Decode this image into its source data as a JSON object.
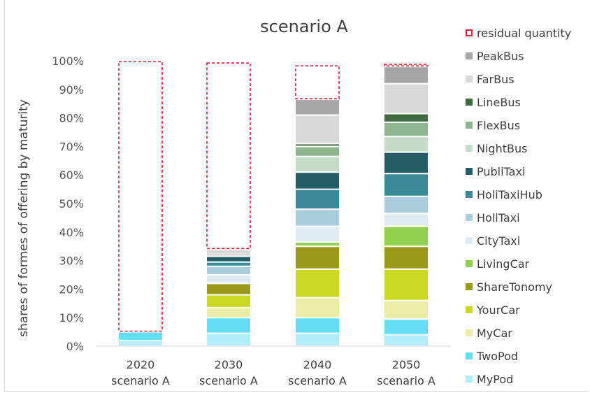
{
  "chart_data": {
    "type": "bar",
    "stacked": true,
    "title": "scenario A",
    "ylabel": "shares of formes of offering by maturity",
    "xlabel": "",
    "ylim": [
      0,
      100
    ],
    "yticks": [
      "0%",
      "10%",
      "20%",
      "30%",
      "40%",
      "50%",
      "60%",
      "70%",
      "80%",
      "90%",
      "100%"
    ],
    "grid": false,
    "legend_position": "right",
    "categories": [
      {
        "year": "2020",
        "scenario": "scenario A"
      },
      {
        "year": "2030",
        "scenario": "scenario A"
      },
      {
        "year": "2040",
        "scenario": "scenario A"
      },
      {
        "year": "2050",
        "scenario": "scenario A"
      }
    ],
    "series": [
      {
        "name": "MyPod",
        "color": "#b3ecfa",
        "values": [
          2,
          4.5,
          4.5,
          4
        ]
      },
      {
        "name": "TwoPod",
        "color": "#66ddf5",
        "values": [
          3,
          5.5,
          5.5,
          5.5
        ]
      },
      {
        "name": "MyCar",
        "color": "#e9eda6",
        "values": [
          0,
          3.5,
          7,
          6.5
        ]
      },
      {
        "name": "YourCar",
        "color": "#ccd923",
        "values": [
          0,
          4.5,
          10,
          11
        ]
      },
      {
        "name": "ShareTonomy",
        "color": "#9a9a1a",
        "values": [
          0,
          4,
          8,
          8
        ]
      },
      {
        "name": "LivingCar",
        "color": "#92d050",
        "values": [
          0,
          0,
          1.5,
          7
        ]
      },
      {
        "name": "CityTaxi",
        "color": "#deebf3",
        "values": [
          0,
          3,
          5.5,
          4.5
        ]
      },
      {
        "name": "HoliTaxi",
        "color": "#a9cedd",
        "values": [
          0,
          3,
          6,
          6
        ]
      },
      {
        "name": "HoliTaxiHub",
        "color": "#3a8a9a",
        "values": [
          0,
          1.5,
          7,
          8
        ]
      },
      {
        "name": "PubliTaxi",
        "color": "#265c66",
        "values": [
          0,
          2,
          6,
          7.5
        ]
      },
      {
        "name": "NightBus",
        "color": "#c5dcc8",
        "values": [
          0,
          0,
          5.5,
          5.5
        ]
      },
      {
        "name": "FlexBus",
        "color": "#8db58f",
        "values": [
          0,
          0,
          3.5,
          5
        ]
      },
      {
        "name": "LineBus",
        "color": "#3f6c3f",
        "values": [
          0,
          0,
          1,
          3
        ]
      },
      {
        "name": "FarBus",
        "color": "#d9d9d9",
        "values": [
          0,
          2.5,
          10,
          10.5
        ]
      },
      {
        "name": "PeakBus",
        "color": "#a6a6a6",
        "values": [
          0,
          0,
          5.5,
          6
        ]
      },
      {
        "name": "residual quantity",
        "color": "#d9223b",
        "style": "dashed-outline",
        "values": [
          95,
          65.5,
          12,
          1
        ]
      }
    ],
    "legend_order": [
      "residual quantity",
      "PeakBus",
      "FarBus",
      "LineBus",
      "FlexBus",
      "NightBus",
      "PubliTaxi",
      "HoliTaxiHub",
      "HoliTaxi",
      "CityTaxi",
      "LivingCar",
      "ShareTonomy",
      "YourCar",
      "MyCar",
      "TwoPod",
      "MyPod"
    ]
  }
}
